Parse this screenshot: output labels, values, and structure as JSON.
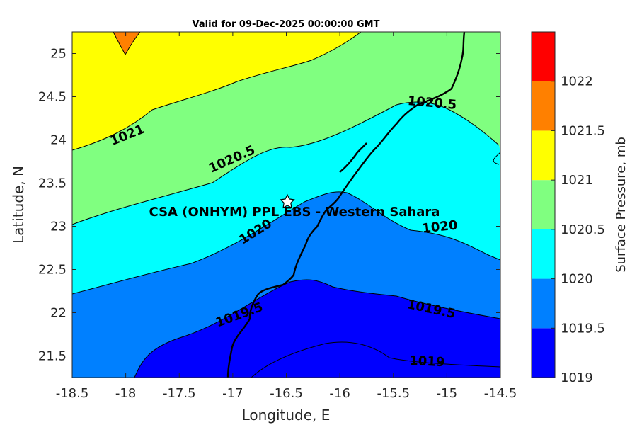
{
  "chart_data": {
    "type": "contour",
    "title": "Valid for 09-Dec-2025 00:00:00 GMT",
    "xlabel": "Longitude, E",
    "ylabel": "Latitude, N",
    "xlim": [
      -18.5,
      -14.5
    ],
    "ylim": [
      21.25,
      25.25
    ],
    "x_ticks": [
      "-18.5",
      "-18",
      "-17.5",
      "-17",
      "-16.5",
      "-16",
      "-15.5",
      "-15",
      "-14.5"
    ],
    "y_ticks": [
      "21.5",
      "22",
      "22.5",
      "23",
      "23.5",
      "24",
      "24.5",
      "25"
    ],
    "colorbar": {
      "label": "Surface Pressure, mb",
      "ticks": [
        "1019",
        "1019.5",
        "1020",
        "1020.5",
        "1021",
        "1021.5",
        "1022"
      ],
      "levels": [
        {
          "from": 1019,
          "to": 1019.5,
          "color": "#0000ff"
        },
        {
          "from": 1019.5,
          "to": 1020,
          "color": "#0080ff"
        },
        {
          "from": 1020,
          "to": 1020.5,
          "color": "#00ffff"
        },
        {
          "from": 1020.5,
          "to": 1021,
          "color": "#80ff80"
        },
        {
          "from": 1021,
          "to": 1021.5,
          "color": "#ffff00"
        },
        {
          "from": 1021.5,
          "to": 1022,
          "color": "#ff8000"
        },
        {
          "from": 1022,
          "to": 1022.5,
          "color": "#ff0000"
        }
      ]
    },
    "contour_labels": [
      {
        "text": "1021",
        "lon": -18.0,
        "lat": 24.08
      },
      {
        "text": "1020.5",
        "lon": -17.1,
        "lat": 23.8
      },
      {
        "text": "1020.5",
        "lon": -15.2,
        "lat": 24.44
      },
      {
        "text": "1020",
        "lon": -16.75,
        "lat": 22.95
      },
      {
        "text": "1020",
        "lon": -14.93,
        "lat": 23.0
      },
      {
        "text": "1019.5",
        "lon": -17.05,
        "lat": 22.0
      },
      {
        "text": "1019.5",
        "lon": -15.1,
        "lat": 22.03
      },
      {
        "text": "1019",
        "lon": -15.19,
        "lat": 21.53
      }
    ],
    "site": {
      "name": "CSA (ONHYM) PPL EBS - Western Sahara",
      "lon": -16.5,
      "lat": 23.29
    }
  }
}
